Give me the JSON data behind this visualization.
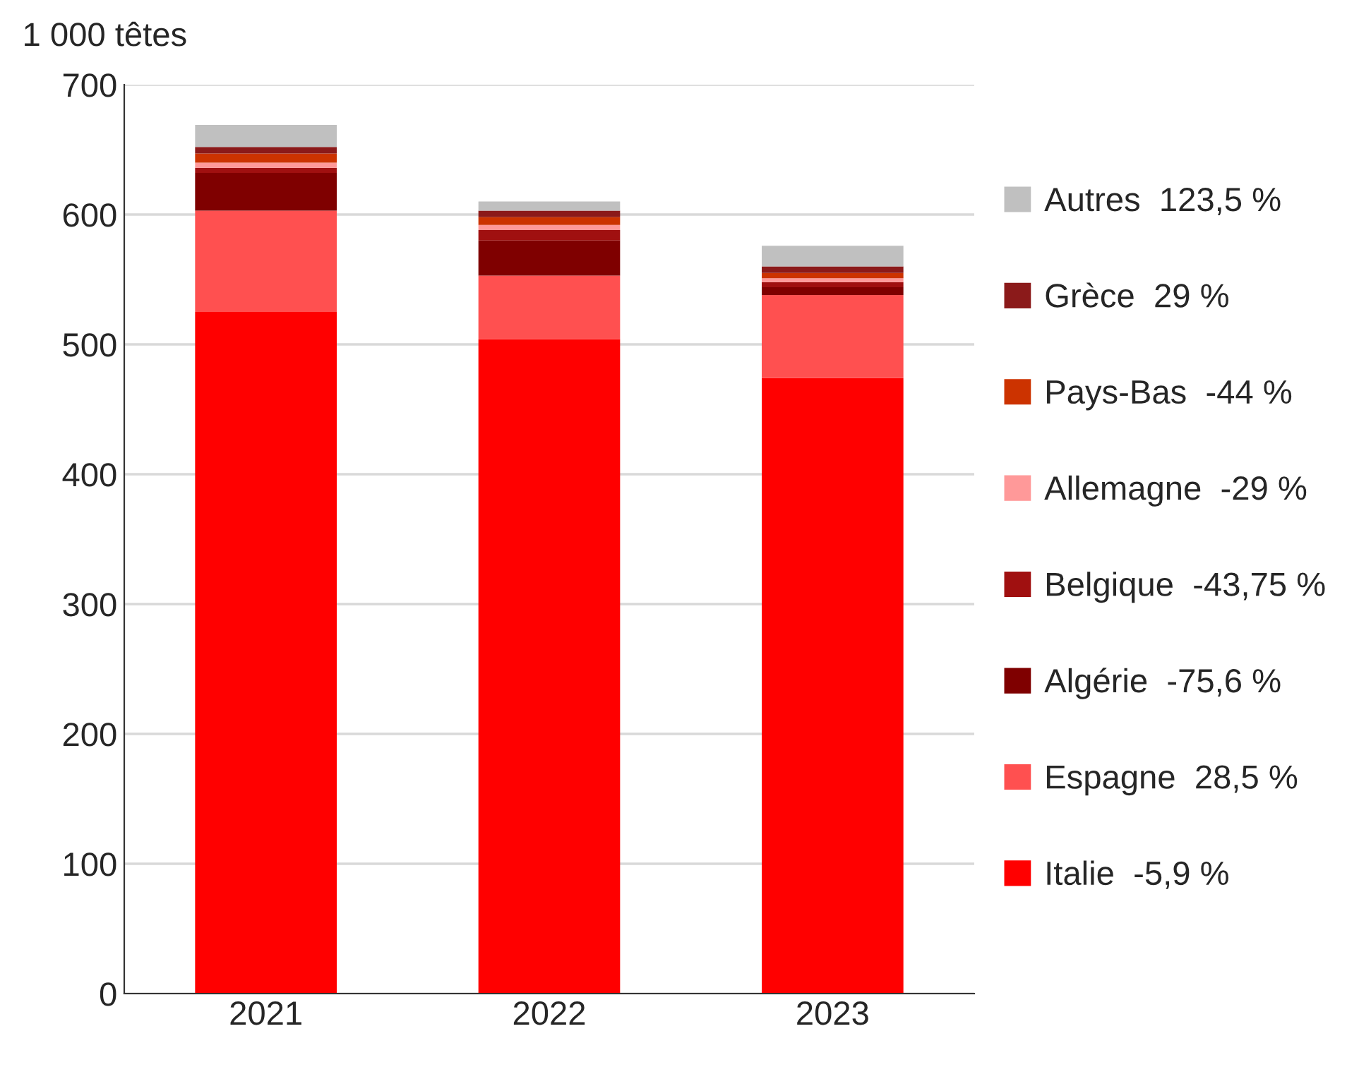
{
  "chart_data": {
    "type": "bar",
    "stacked": true,
    "ylabel": "1 000 têtes",
    "categories": [
      "2021",
      "2022",
      "2023"
    ],
    "series": [
      {
        "name": "Italie  -5,9 %",
        "color": "#ff0000",
        "values": [
          525,
          504,
          474
        ]
      },
      {
        "name": "Espagne  28,5 %",
        "color": "#ff5050",
        "values": [
          78,
          49,
          64
        ]
      },
      {
        "name": "Algérie  -75,6 %",
        "color": "#7f0000",
        "values": [
          29,
          27,
          6
        ]
      },
      {
        "name": "Belgique  -43,75 %",
        "color": "#a01010",
        "values": [
          4,
          8,
          4
        ]
      },
      {
        "name": "Allemagne  -29 %",
        "color": "#ff9999",
        "values": [
          4,
          4,
          3
        ]
      },
      {
        "name": "Pays-Bas  -44 %",
        "color": "#cc3300",
        "values": [
          7,
          6,
          4
        ]
      },
      {
        "name": "Grèce  29 %",
        "color": "#8b1a1a",
        "values": [
          5,
          5,
          5
        ]
      },
      {
        "name": "Autres  123,5 %",
        "color": "#c0c0c0",
        "values": [
          17,
          7,
          16
        ]
      }
    ],
    "ylim": [
      0,
      700
    ],
    "yticks": [
      0,
      100,
      200,
      300,
      400,
      500,
      600,
      700
    ],
    "grid": "y",
    "legend": "right"
  }
}
